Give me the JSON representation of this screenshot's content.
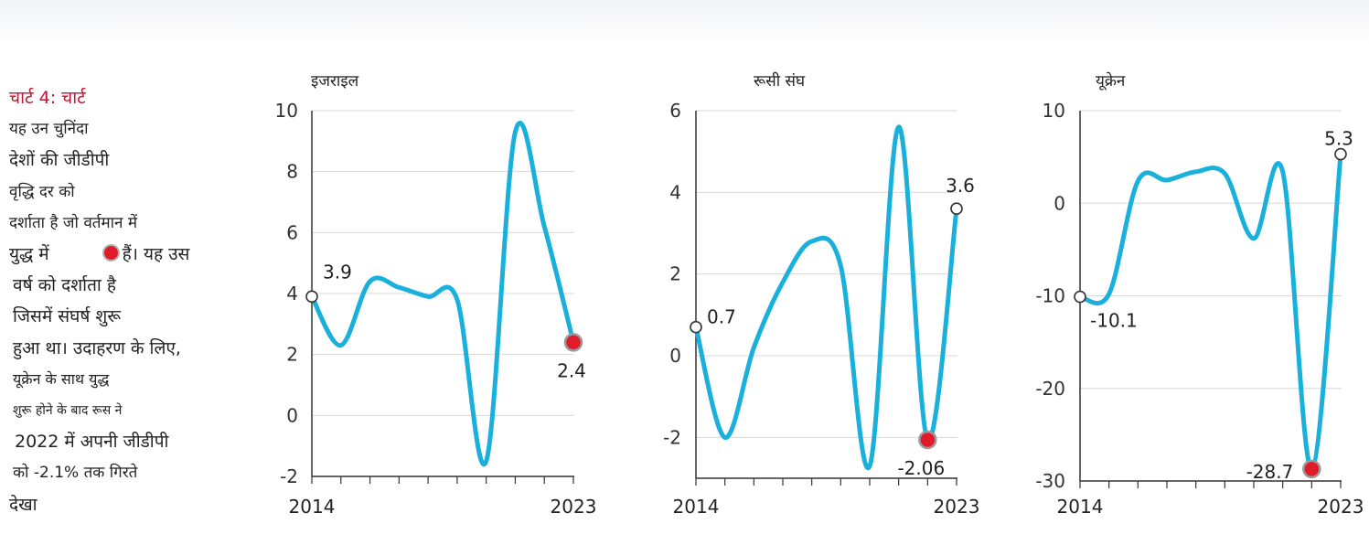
{
  "caption": {
    "label": "चार्ट 4: चार्ट",
    "lines": [
      "यह उन चुनिंदा",
      "देशों की जीडीपी",
      "वृद्धि दर को",
      "दर्शाता है जो वर्तमान में",
      "युद्ध में",
      "हैं। यह उस",
      "वर्ष को दर्शाता है",
      "जिसमें संघर्ष शुरू",
      "हुआ था। उदाहरण के लिए,",
      "यूक्रेन के साथ युद्ध",
      "शुरू होने के बाद रूस ने",
      "2022 में अपनी जीडीपी",
      "को -2.1% तक गिरते",
      "देखा"
    ]
  },
  "colors": {
    "line": "#1ab0dc",
    "highlight": "#e11c2a",
    "grid": "#d8d8d8",
    "axis": "#333333"
  },
  "chart_data": [
    {
      "type": "line",
      "title": "इजराइल",
      "x_start_label": "2014",
      "x_end_label": "2023",
      "x": [
        2014,
        2015,
        2016,
        2017,
        2018,
        2019,
        2020,
        2021,
        2022,
        2023
      ],
      "values": [
        3.9,
        2.3,
        4.4,
        4.2,
        3.9,
        3.8,
        -1.5,
        9.3,
        6.2,
        2.4
      ],
      "ylim": [
        -2,
        10
      ],
      "yticks": [
        -2,
        0,
        2,
        4,
        6,
        8,
        10
      ],
      "annotations": [
        {
          "x": 2014,
          "y": 3.9,
          "label": "3.9",
          "style": "open"
        },
        {
          "x": 2023,
          "y": 2.4,
          "label": "2.4",
          "style": "highlight"
        }
      ]
    },
    {
      "type": "line",
      "title": "रूसी संघ",
      "x_start_label": "2014",
      "x_end_label": "2023",
      "x": [
        2014,
        2015,
        2016,
        2017,
        2018,
        2019,
        2020,
        2021,
        2022,
        2023
      ],
      "values": [
        0.7,
        -2.0,
        0.2,
        1.8,
        2.8,
        2.2,
        -2.7,
        5.6,
        -2.06,
        3.6
      ],
      "ylim": [
        -3,
        6
      ],
      "yticks": [
        -2,
        0,
        2,
        4,
        6
      ],
      "annotations": [
        {
          "x": 2014,
          "y": 0.7,
          "label": "0.7",
          "style": "open"
        },
        {
          "x": 2022,
          "y": -2.06,
          "label": "-2.06",
          "style": "highlight"
        },
        {
          "x": 2023,
          "y": 3.6,
          "label": "3.6",
          "style": "open"
        }
      ]
    },
    {
      "type": "line",
      "title": "यूक्रेन",
      "x_start_label": "2014",
      "x_end_label": "2023",
      "x": [
        2014,
        2015,
        2016,
        2017,
        2018,
        2019,
        2020,
        2021,
        2022,
        2023
      ],
      "values": [
        -10.1,
        -9.8,
        2.4,
        2.5,
        3.4,
        3.2,
        -3.8,
        3.4,
        -28.7,
        5.3
      ],
      "ylim": [
        -30,
        10
      ],
      "yticks": [
        -30,
        -20,
        -10,
        0,
        10
      ],
      "annotations": [
        {
          "x": 2014,
          "y": -10.1,
          "label": "-10.1",
          "style": "open"
        },
        {
          "x": 2022,
          "y": -28.7,
          "label": "-28.7",
          "style": "highlight"
        },
        {
          "x": 2023,
          "y": 5.3,
          "label": "5.3",
          "style": "open"
        }
      ]
    }
  ]
}
